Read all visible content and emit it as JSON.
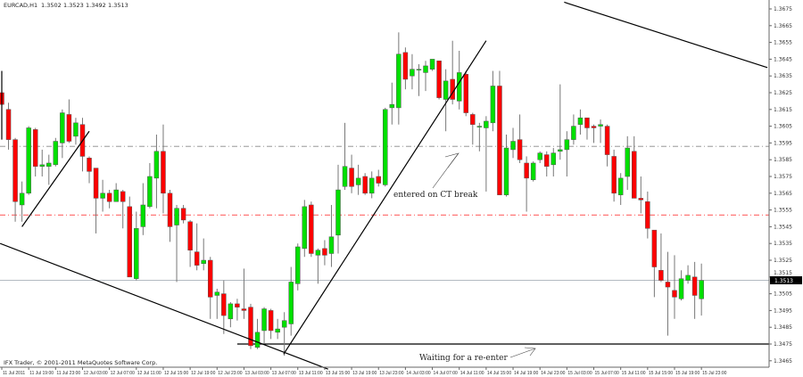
{
  "header": {
    "symbol": "EURCAD,H1",
    "ohlc": [
      "1.3502",
      "1.3523",
      "1.3492",
      "1.3513"
    ]
  },
  "copyright": "IFX Trader, © 2001-2011 MetaQuotes Software Corp.",
  "annotations": {
    "entered": "entered on CT break",
    "waiting": "Waiting for a re-enter"
  },
  "colors": {
    "bull": "#00e000",
    "bear": "#ff0000",
    "bid_line": "#a8b0b8",
    "support_line": "#ff5050",
    "resistance_line": "#888888",
    "trendline": "#000000"
  },
  "chart_data": {
    "type": "candlestick",
    "symbol": "EURCAD",
    "timeframe": "H1",
    "first_bar": "11 Jul 2011 15:00",
    "ylim": [
      1.346,
      1.368
    ],
    "y_ticks": [
      "1.3675",
      "1.3665",
      "1.3655",
      "1.3645",
      "1.3635",
      "1.3625",
      "1.3615",
      "1.3605",
      "1.3595",
      "1.3585",
      "1.3575",
      "1.3565",
      "1.3555",
      "1.3545",
      "1.3535",
      "1.3525",
      "1.3515",
      "1.3505",
      "1.3495",
      "1.3485",
      "1.3475",
      "1.3465"
    ],
    "x_ticks": [
      "11 Jul 2011",
      "11 Jul 19:00",
      "11 Jul 23:00",
      "12 Jul 03:00",
      "12 Jul 07:00",
      "12 Jul 11:00",
      "12 Jul 15:00",
      "12 Jul 19:00",
      "12 Jul 23:00",
      "13 Jul 03:00",
      "13 Jul 07:00",
      "13 Jul 11:00",
      "13 Jul 15:00",
      "13 Jul 19:00",
      "13 Jul 23:00",
      "14 Jul 03:00",
      "14 Jul 07:00",
      "14 Jul 11:00",
      "14 Jul 15:00",
      "14 Jul 19:00",
      "14 Jul 23:00",
      "15 Jul 03:00",
      "15 Jul 07:00",
      "15 Jul 11:00",
      "15 Jul 15:00",
      "15 Jul 19:00",
      "15 Jul 23:00"
    ],
    "current_price": "1.3513",
    "grid": false,
    "ohlc": [
      [
        1.3625,
        1.3628,
        1.3615,
        1.3618
      ],
      [
        1.3615,
        1.3619,
        1.3591,
        1.3597
      ],
      [
        1.3597,
        1.3598,
        1.3548,
        1.356
      ],
      [
        1.3558,
        1.3572,
        1.3548,
        1.3565
      ],
      [
        1.3565,
        1.3605,
        1.3564,
        1.3604
      ],
      [
        1.3603,
        1.3604,
        1.3575,
        1.3581
      ],
      [
        1.3581,
        1.3591,
        1.3575,
        1.3582
      ],
      [
        1.3581,
        1.3588,
        1.357,
        1.3583
      ],
      [
        1.3582,
        1.3598,
        1.3581,
        1.3596
      ],
      [
        1.3595,
        1.3615,
        1.3586,
        1.3613
      ],
      [
        1.3612,
        1.3621,
        1.3595,
        1.3596
      ],
      [
        1.3599,
        1.361,
        1.3594,
        1.3607
      ],
      [
        1.3606,
        1.361,
        1.3578,
        1.3587
      ],
      [
        1.3586,
        1.3587,
        1.3571,
        1.3578
      ],
      [
        1.358,
        1.358,
        1.3541,
        1.3562
      ],
      [
        1.3562,
        1.3573,
        1.3554,
        1.3565
      ],
      [
        1.3565,
        1.3567,
        1.3556,
        1.356
      ],
      [
        1.356,
        1.3571,
        1.356,
        1.3567
      ],
      [
        1.3566,
        1.3567,
        1.3544,
        1.356
      ],
      [
        1.3557,
        1.3563,
        1.3515,
        1.3515
      ],
      [
        1.3514,
        1.3554,
        1.3513,
        1.3544
      ],
      [
        1.3545,
        1.3571,
        1.354,
        1.3558
      ],
      [
        1.3557,
        1.3583,
        1.3556,
        1.3575
      ],
      [
        1.3574,
        1.36,
        1.3556,
        1.359
      ],
      [
        1.359,
        1.3606,
        1.3553,
        1.3565
      ],
      [
        1.3565,
        1.3567,
        1.3536,
        1.3545
      ],
      [
        1.3546,
        1.3558,
        1.3512,
        1.3556
      ],
      [
        1.3556,
        1.3558,
        1.3547,
        1.3549
      ],
      [
        1.3548,
        1.3549,
        1.3521,
        1.3531
      ],
      [
        1.353,
        1.3547,
        1.3519,
        1.3522
      ],
      [
        1.3523,
        1.3538,
        1.3519,
        1.3525
      ],
      [
        1.3525,
        1.3527,
        1.349,
        1.3503
      ],
      [
        1.3504,
        1.3508,
        1.349,
        1.3506
      ],
      [
        1.3505,
        1.3513,
        1.3481,
        1.3492
      ],
      [
        1.349,
        1.35,
        1.3485,
        1.3499
      ],
      [
        1.3499,
        1.3502,
        1.3489,
        1.3497
      ],
      [
        1.3496,
        1.352,
        1.349,
        1.3495
      ],
      [
        1.3497,
        1.3499,
        1.3472,
        1.3474
      ],
      [
        1.3473,
        1.349,
        1.3472,
        1.3482
      ],
      [
        1.3483,
        1.3497,
        1.3475,
        1.3496
      ],
      [
        1.3495,
        1.3496,
        1.3478,
        1.3483
      ],
      [
        1.3482,
        1.349,
        1.3478,
        1.3484
      ],
      [
        1.3485,
        1.3494,
        1.3468,
        1.3489
      ],
      [
        1.3487,
        1.3521,
        1.348,
        1.3512
      ],
      [
        1.3511,
        1.3535,
        1.3507,
        1.3533
      ],
      [
        1.3532,
        1.3561,
        1.3527,
        1.3557
      ],
      [
        1.3558,
        1.356,
        1.3527,
        1.3529
      ],
      [
        1.3528,
        1.3532,
        1.3511,
        1.3531
      ],
      [
        1.3532,
        1.3537,
        1.3522,
        1.3528
      ],
      [
        1.3529,
        1.3558,
        1.3521,
        1.3539
      ],
      [
        1.354,
        1.3582,
        1.3529,
        1.3567
      ],
      [
        1.3569,
        1.3607,
        1.3567,
        1.3581
      ],
      [
        1.358,
        1.3588,
        1.3565,
        1.3569
      ],
      [
        1.357,
        1.3582,
        1.3564,
        1.3574
      ],
      [
        1.3575,
        1.3577,
        1.3564,
        1.3565
      ],
      [
        1.3565,
        1.3578,
        1.3562,
        1.3574
      ],
      [
        1.3575,
        1.3579,
        1.3569,
        1.3571
      ],
      [
        1.357,
        1.3616,
        1.3569,
        1.3615
      ],
      [
        1.3616,
        1.3631,
        1.3606,
        1.3618
      ],
      [
        1.3616,
        1.3661,
        1.3606,
        1.3648
      ],
      [
        1.3649,
        1.3652,
        1.3627,
        1.3633
      ],
      [
        1.3635,
        1.3648,
        1.3627,
        1.3639
      ],
      [
        1.3639,
        1.3642,
        1.3623,
        1.3639
      ],
      [
        1.3637,
        1.3644,
        1.3626,
        1.3641
      ],
      [
        1.3639,
        1.3645,
        1.3638,
        1.3645
      ],
      [
        1.3644,
        1.3644,
        1.3621,
        1.3622
      ],
      [
        1.3621,
        1.3639,
        1.3602,
        1.3632
      ],
      [
        1.3633,
        1.3656,
        1.3618,
        1.3621
      ],
      [
        1.362,
        1.365,
        1.3615,
        1.3637
      ],
      [
        1.3636,
        1.3638,
        1.3611,
        1.3613
      ],
      [
        1.3612,
        1.3613,
        1.3594,
        1.3606
      ],
      [
        1.3605,
        1.3607,
        1.359,
        1.3605
      ],
      [
        1.3604,
        1.3611,
        1.3566,
        1.3608
      ],
      [
        1.3607,
        1.3638,
        1.3602,
        1.3629
      ],
      [
        1.3629,
        1.3638,
        1.3564,
        1.3564
      ],
      [
        1.3564,
        1.36,
        1.3563,
        1.3592
      ],
      [
        1.3591,
        1.3604,
        1.3586,
        1.3596
      ],
      [
        1.3597,
        1.3612,
        1.3583,
        1.3585
      ],
      [
        1.3583,
        1.3587,
        1.3554,
        1.3574
      ],
      [
        1.3573,
        1.3584,
        1.3572,
        1.3583
      ],
      [
        1.3585,
        1.359,
        1.3583,
        1.3589
      ],
      [
        1.3588,
        1.359,
        1.3575,
        1.3581
      ],
      [
        1.3582,
        1.3592,
        1.3575,
        1.3589
      ],
      [
        1.359,
        1.363,
        1.3585,
        1.3591
      ],
      [
        1.3591,
        1.3602,
        1.3575,
        1.3597
      ],
      [
        1.3597,
        1.3612,
        1.3594,
        1.3605
      ],
      [
        1.3606,
        1.3615,
        1.36,
        1.361
      ],
      [
        1.361,
        1.361,
        1.3597,
        1.3604
      ],
      [
        1.3605,
        1.3606,
        1.3595,
        1.3604
      ],
      [
        1.3605,
        1.3609,
        1.3595,
        1.3606
      ],
      [
        1.3605,
        1.3606,
        1.3581,
        1.3588
      ],
      [
        1.3587,
        1.3591,
        1.356,
        1.3565
      ],
      [
        1.3564,
        1.3577,
        1.3558,
        1.3574
      ],
      [
        1.3575,
        1.3599,
        1.3567,
        1.3592
      ],
      [
        1.359,
        1.3599,
        1.3562,
        1.3562
      ],
      [
        1.3562,
        1.3575,
        1.3553,
        1.3561
      ],
      [
        1.356,
        1.3566,
        1.3538,
        1.3544
      ],
      [
        1.3543,
        1.3543,
        1.3503,
        1.3521
      ],
      [
        1.3519,
        1.3541,
        1.3512,
        1.3513
      ],
      [
        1.3512,
        1.353,
        1.348,
        1.3509
      ],
      [
        1.3507,
        1.3528,
        1.349,
        1.3503
      ],
      [
        1.3502,
        1.3519,
        1.3501,
        1.3514
      ],
      [
        1.3513,
        1.3522,
        1.3511,
        1.3516
      ],
      [
        1.3515,
        1.3524,
        1.349,
        1.3504
      ],
      [
        1.3502,
        1.3523,
        1.3492,
        1.3513
      ]
    ],
    "horizontal_lines": [
      {
        "price": 1.3593,
        "style": "dash-dot",
        "color": "resistance_line"
      },
      {
        "price": 1.3552,
        "style": "dash-dot",
        "color": "support_line"
      },
      {
        "price": 1.3513,
        "style": "solid",
        "color": "bid_line"
      },
      {
        "price": 1.3475,
        "style": "solid",
        "color": "trendline",
        "from": "13 Jul 02:00"
      }
    ],
    "trendlines": [
      {
        "from": [
          "11 Jul 15:00",
          1.3638
        ],
        "to": [
          "11 Jul 15:00",
          1.3597
        ]
      },
      {
        "from": [
          "11 Jul 18:00",
          1.3545
        ],
        "to": [
          "12 Jul 04:00",
          1.3602
        ]
      },
      {
        "from": [
          "11 Jul 14:45",
          1.3535
        ],
        "to": [
          "13 Jul 15:30",
          1.346
        ]
      },
      {
        "from": [
          "13 Jul 08:54",
          1.3469
        ],
        "to": [
          "14 Jul 15:00",
          1.3656
        ]
      },
      {
        "from": [
          "15 Jul 02:36",
          1.3679
        ],
        "to": [
          "16 Jul 08:48",
          1.364
        ]
      }
    ]
  }
}
